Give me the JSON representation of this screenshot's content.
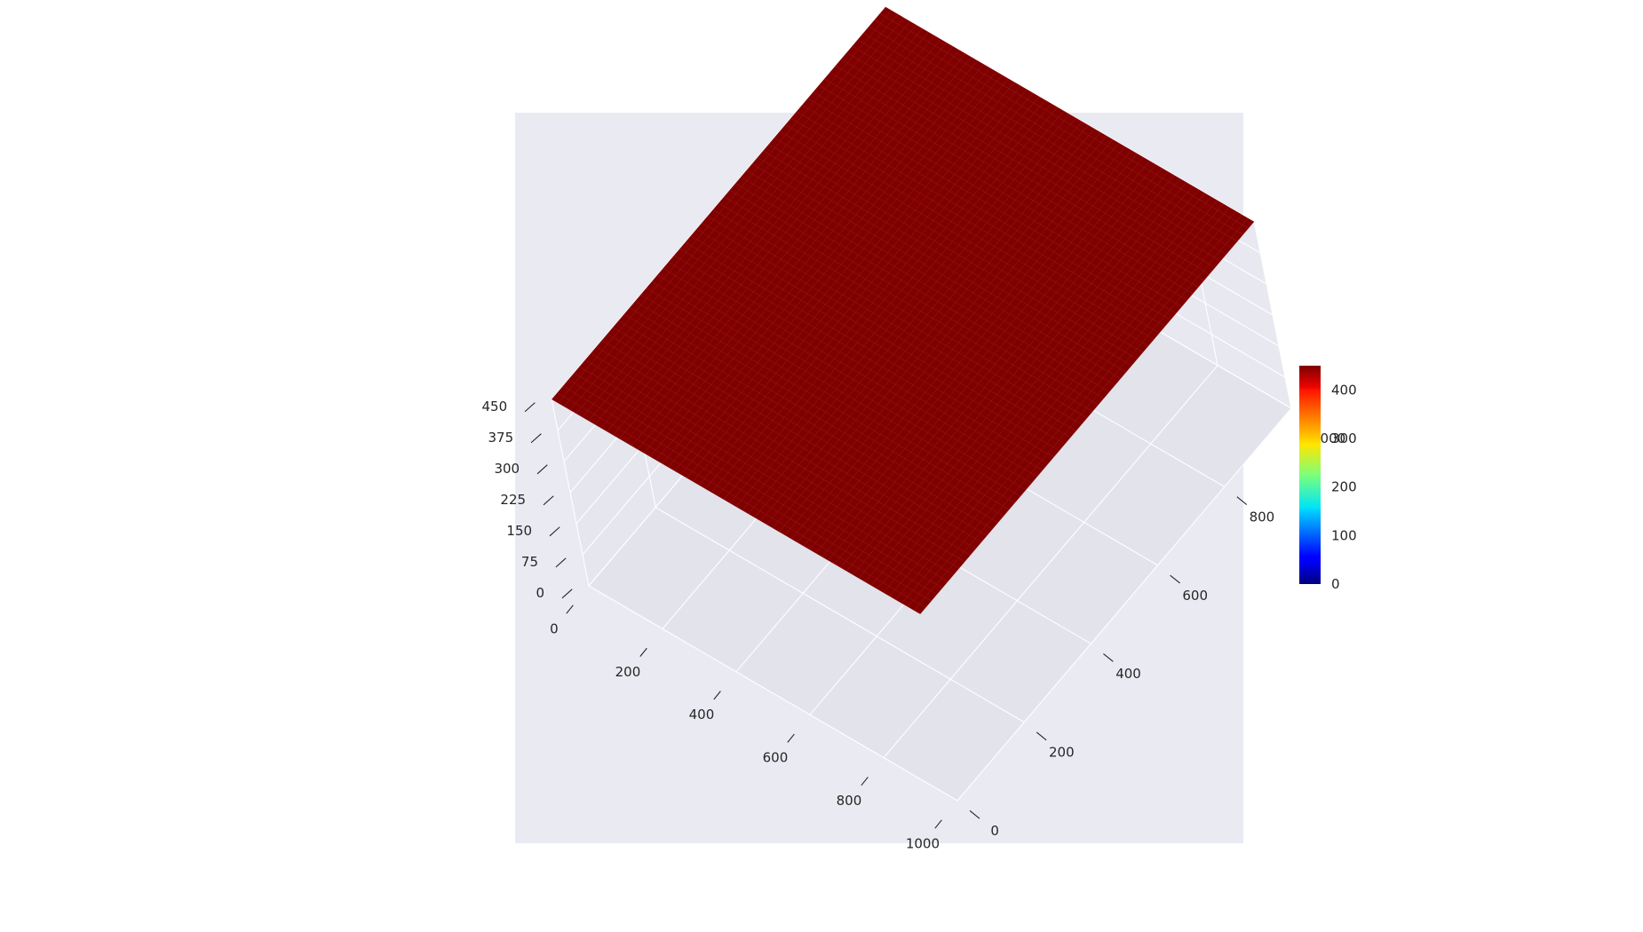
{
  "chart_data": {
    "type": "surface3d",
    "title": "",
    "xlabel": "",
    "ylabel": "",
    "zlabel": "",
    "x_ticks": [
      0,
      200,
      400,
      600,
      800,
      1000
    ],
    "y_ticks": [
      0,
      200,
      400,
      600,
      800,
      1000
    ],
    "z_ticks": [
      0,
      75,
      150,
      225,
      300,
      375,
      450
    ],
    "xlim": [
      0,
      1000
    ],
    "ylim": [
      0,
      1000
    ],
    "zlim": [
      0,
      450
    ],
    "surface": {
      "description_value": "constant",
      "z": 450,
      "grid_resolution": 60
    },
    "colormap": "jet",
    "colorbar": {
      "ticks": [
        0,
        100,
        200,
        300,
        400
      ],
      "range": [
        0,
        450
      ]
    },
    "colors": {
      "pane": "#eaeaf2",
      "grid": "#ffffff",
      "surface": "#800000",
      "surface_edge": "#9a2a2a"
    },
    "grid": true
  }
}
